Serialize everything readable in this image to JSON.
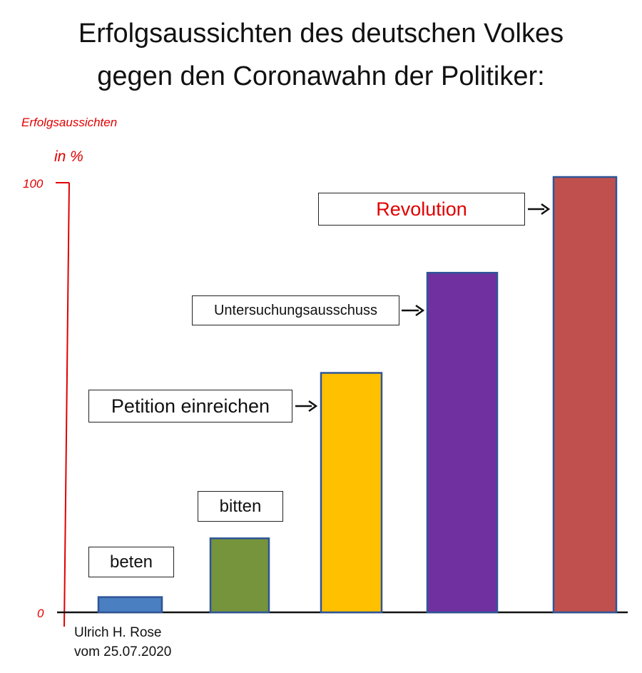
{
  "title": {
    "line1": "Erfolgsaussichten des deutschen Volkes",
    "line2": "gegen den Coronawahn der Politiker:"
  },
  "credit": {
    "line1": "Ulrich H. Rose",
    "line2": "vom 25.07.2020"
  },
  "chart_data": {
    "type": "bar",
    "ylabel": [
      "Erfolgsaussichten",
      "in %"
    ],
    "ylim": [
      0,
      100
    ],
    "yticks": [
      "0",
      "100"
    ],
    "grid": false,
    "categories": [
      "beten",
      "bitten",
      "Petition einreichen",
      "Untersuchungsausschuss",
      "Revolution"
    ],
    "values": [
      3.5,
      17,
      55,
      78,
      100
    ],
    "colors": [
      "#4a7fc1",
      "#75943b",
      "#ffc000",
      "#7030a0",
      "#c0504d"
    ],
    "label_colors": [
      "#111111",
      "#111111",
      "#111111",
      "#111111",
      "#e00000"
    ],
    "axis_color": "#e00000",
    "bar_stroke": "#2f5597"
  }
}
